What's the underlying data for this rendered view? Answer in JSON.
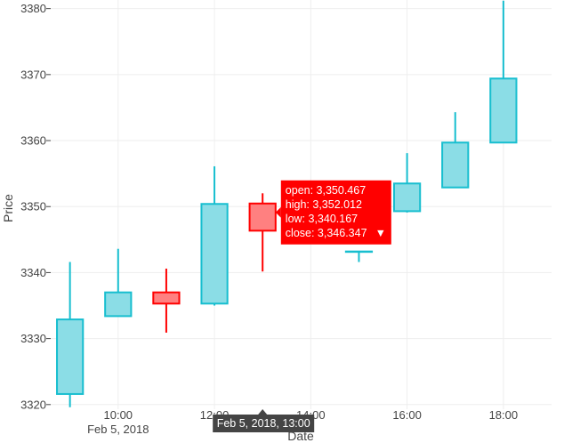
{
  "chart_data": {
    "type": "candlestick",
    "title": "",
    "xlabel": "Date",
    "ylabel": "Price",
    "x_ticks": [
      "10:00",
      "12:00",
      "14:00",
      "16:00",
      "18:00"
    ],
    "x_tick_date": "Feb 5, 2018",
    "y_ticks": [
      "3320",
      "3330",
      "3340",
      "3350",
      "3360",
      "3370",
      "3380"
    ],
    "ylim": [
      3319.3,
      3381.3
    ],
    "x_range_hours": [
      8.6,
      19.0
    ],
    "increasing_color": "#17becf",
    "decreasing_color": "#ff0000",
    "candles": [
      {
        "hour": 9,
        "open": 3321.6,
        "high": 3341.6,
        "low": 3319.6,
        "close": 3332.9
      },
      {
        "hour": 10,
        "open": 3333.4,
        "high": 3343.6,
        "low": 3333.4,
        "close": 3337.0
      },
      {
        "hour": 11,
        "open": 3337.0,
        "high": 3340.6,
        "low": 3330.9,
        "close": 3335.3
      },
      {
        "hour": 12,
        "open": 3335.3,
        "high": 3356.1,
        "low": 3335.0,
        "close": 3350.4
      },
      {
        "hour": 13,
        "open": 3350.467,
        "high": 3352.012,
        "low": 3340.167,
        "close": 3346.347
      },
      {
        "hour": 15,
        "open": 3343.2,
        "high": 3343.2,
        "low": 3341.6,
        "close": 3343.2
      },
      {
        "hour": 16,
        "open": 3349.3,
        "high": 3358.1,
        "low": 3349.1,
        "close": 3353.5
      },
      {
        "hour": 17,
        "open": 3352.9,
        "high": 3364.3,
        "low": 3352.9,
        "close": 3359.7
      },
      {
        "hour": 18,
        "open": 3359.7,
        "high": 3381.2,
        "low": 3359.7,
        "close": 3369.4
      }
    ],
    "hover": {
      "hour": 13,
      "x_label": "Feb 5, 2018, 13:00",
      "lines": [
        "open: 3,350.467",
        "high: 3,352.012",
        "low: 3,340.167",
        "close: 3,346.347"
      ],
      "marker": "▼"
    }
  }
}
